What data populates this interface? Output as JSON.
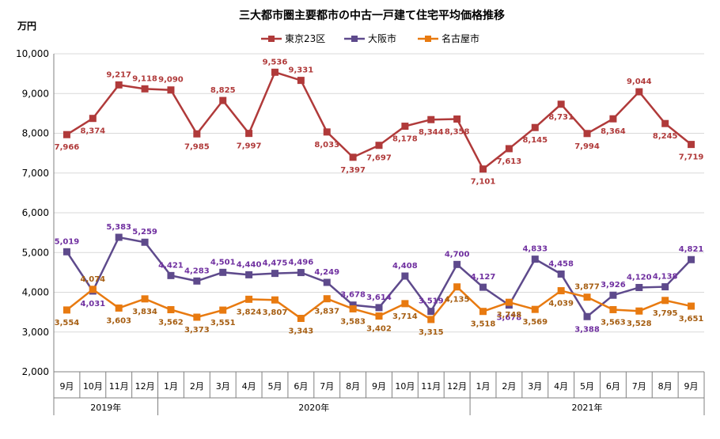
{
  "chart_data": {
    "type": "line",
    "title": "三大都市圏主要都市の中古一戸建て住宅平均価格推移",
    "ylabel": "万円",
    "ylim": [
      2000,
      10000
    ],
    "y_ticks": [
      "2,000",
      "3,000",
      "4,000",
      "5,000",
      "6,000",
      "7,000",
      "8,000",
      "9,000",
      "10,000"
    ],
    "categories": [
      "9月",
      "10月",
      "11月",
      "12月",
      "1月",
      "2月",
      "3月",
      "4月",
      "5月",
      "6月",
      "7月",
      "8月",
      "9月",
      "10月",
      "11月",
      "12月",
      "1月",
      "2月",
      "3月",
      "4月",
      "5月",
      "6月",
      "7月",
      "8月",
      "9月"
    ],
    "year_groups": [
      {
        "label": "2019年",
        "count": 4
      },
      {
        "label": "2020年",
        "count": 12
      },
      {
        "label": "2021年",
        "count": 9
      }
    ],
    "series": [
      {
        "name": "東京23区",
        "color": "#B03A3A",
        "values": [
          7966,
          8374,
          9217,
          9118,
          9090,
          7985,
          8825,
          7997,
          9536,
          9331,
          8033,
          7397,
          7697,
          8178,
          8344,
          8358,
          7101,
          7613,
          8145,
          8731,
          7994,
          8364,
          9044,
          8245,
          7719
        ],
        "labels": [
          "7,966",
          "8,374",
          "9,217",
          "9,118",
          "9,090",
          "7,985",
          "8,825",
          "7,997",
          "9,536",
          "9,331",
          "8,033",
          "7,397",
          "7,697",
          "8,178",
          "8,344",
          "8,358",
          "7,101",
          "7,613",
          "8,145",
          "8,731",
          "7,994",
          "8,364",
          "9,044",
          "8,245",
          "7,719"
        ]
      },
      {
        "name": "大阪市",
        "color": "#5E4A8C",
        "label_color": "#7030A0",
        "values": [
          5019,
          4031,
          5383,
          5259,
          4421,
          4283,
          4501,
          4440,
          4475,
          4496,
          4249,
          3678,
          3614,
          4408,
          3519,
          4700,
          4127,
          3678,
          4833,
          4458,
          3388,
          3926,
          4120,
          4138,
          4821
        ],
        "labels": [
          "5,019",
          "4,031",
          "5,383",
          "5,259",
          "4,421",
          "4,283",
          "4,501",
          "4,440",
          "4,475",
          "4,496",
          "4,249",
          "3,678",
          "3,614",
          "4,408",
          "3,519",
          "4,700",
          "4,127",
          "3,678",
          "4,833",
          "4,458",
          "3,388",
          "3,926",
          "4,120",
          "4,138",
          "4,821"
        ]
      },
      {
        "name": "名古屋市",
        "color": "#E87A10",
        "label_color": "#A65E12",
        "values": [
          3554,
          4074,
          3603,
          3834,
          3562,
          3373,
          3551,
          3824,
          3807,
          3343,
          3837,
          3583,
          3402,
          3714,
          3315,
          4135,
          3518,
          3748,
          3569,
          4039,
          3877,
          3563,
          3528,
          3795,
          3651
        ],
        "labels": [
          "3,554",
          "4,074",
          "3,603",
          "3,834",
          "3,562",
          "3,373",
          "3,551",
          "3,824",
          "3,807",
          "3,343",
          "3,837",
          "3,583",
          "3,402",
          "3,714",
          "3,315",
          "4,135",
          "3,518",
          "3,748",
          "3,569",
          "4,039",
          "3,877",
          "3,563",
          "3,528",
          "3,795",
          "3,651"
        ]
      }
    ]
  }
}
